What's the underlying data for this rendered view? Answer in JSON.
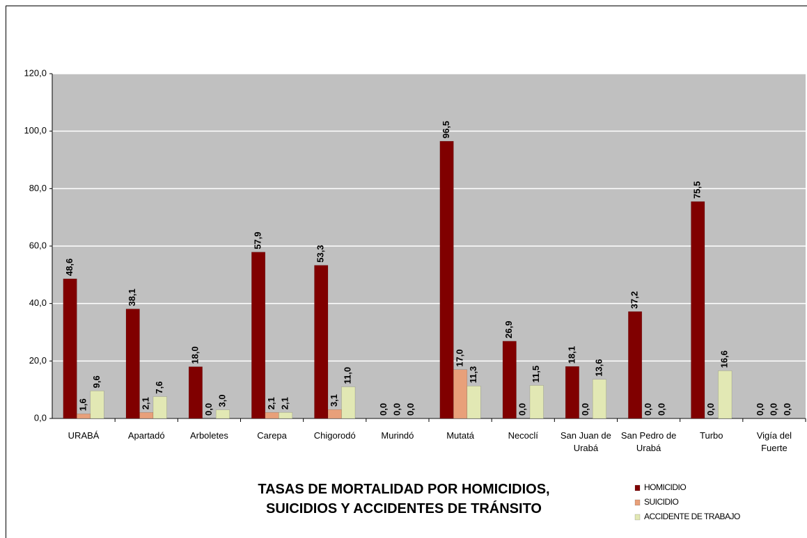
{
  "chart_data": {
    "type": "bar",
    "title": "TASAS DE MORTALIDAD POR HOMICIDIOS, SUICIDIOS Y ACCIDENTES DE TRÁNSITO",
    "categories": [
      "URABÁ",
      "Apartadó",
      "Arboletes",
      "Carepa",
      "Chigorodó",
      "Murindó",
      "Mutatá",
      "Necoclí",
      "San Juan de Urabá",
      "San Pedro de Urabá",
      "Turbo",
      "Vigía del Fuerte"
    ],
    "series": [
      {
        "name": "HOMICIDIO",
        "color": "#800000",
        "values": [
          48.6,
          38.1,
          18.0,
          57.9,
          53.3,
          0.0,
          96.5,
          26.9,
          18.1,
          37.2,
          75.5,
          0.0
        ],
        "value_labels": [
          "48,6",
          "38,1",
          "18,0",
          "57,9",
          "53,3",
          "0,0",
          "96,5",
          "26,9",
          "18,1",
          "37,2",
          "75,5",
          "0,0"
        ]
      },
      {
        "name": "SUICIDIO",
        "color": "#e8a07a",
        "values": [
          1.6,
          2.1,
          0.0,
          2.1,
          3.1,
          0.0,
          17.0,
          0.0,
          0.0,
          0.0,
          0.0,
          0.0
        ],
        "value_labels": [
          "1,6",
          "2,1",
          "0,0",
          "2,1",
          "3,1",
          "0,0",
          "17,0",
          "0,0",
          "0,0",
          "0,0",
          "0,0",
          "0,0"
        ]
      },
      {
        "name": "ACCIDENTE DE TRABAJO",
        "color": "#e2e8b4",
        "values": [
          9.6,
          7.6,
          3.0,
          2.1,
          11.0,
          0.0,
          11.3,
          11.5,
          13.6,
          0.0,
          16.6,
          0.0
        ],
        "value_labels": [
          "9,6",
          "7,6",
          "3,0",
          "2,1",
          "11,0",
          "0,0",
          "11,3",
          "11,5",
          "13,6",
          "0,0",
          "16,6",
          "0,0"
        ]
      }
    ],
    "ylim": [
      0,
      120
    ],
    "yticks": [
      {
        "value": 0,
        "label": "0,0"
      },
      {
        "value": 20,
        "label": "20,0"
      },
      {
        "value": 40,
        "label": "40,0"
      },
      {
        "value": 60,
        "label": "60,0"
      },
      {
        "value": 80,
        "label": "80,0"
      },
      {
        "value": 100,
        "label": "100,0"
      },
      {
        "value": 120,
        "label": "120,0"
      }
    ],
    "grid": true,
    "legend": "bottom-right"
  }
}
